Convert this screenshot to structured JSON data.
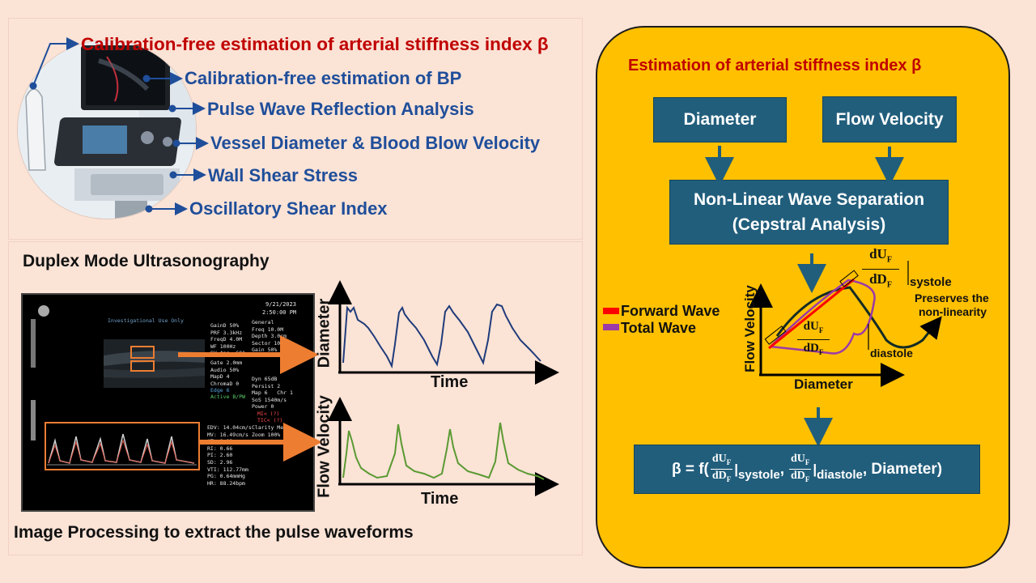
{
  "top_list": {
    "headline": "Calibration-free estimation of arterial stiffness index β",
    "items": [
      "Calibration-free estimation of BP",
      "Pulse Wave Reflection Analysis",
      "Vessel Diameter & Blood Blow Velocity",
      "Wall Shear Stress",
      "Oscillatory Shear Index"
    ]
  },
  "duplex": {
    "title": "Duplex Mode Ultrasonography",
    "caption": "Image Processing to extract the pulse waveforms"
  },
  "ultrasound": {
    "date": "9/21/2023",
    "time": "2:50:00 PM",
    "header_small": "Investigational Use Only",
    "params_left": "GainD 50%\nPRF 3.3kHz\nFreqD 4.0M\nWF 100Hz\nSV Ang -60°",
    "params_right": "General\nFreq 10.0M\nDepth 3.0cm\nSector 100%\nGain 50%",
    "params_left2": "Gate 2.0mm\nAudio 50%\nMapD 4\nChromaD 0",
    "edge": "Edge 6",
    "active": "Active B/PW",
    "params_right2": "Dyn 65dB\nPersist 2\nMap 6   Chr 1\nSoS 1540m/s\nPower 0",
    "warn1": "MI< (?)",
    "warn2": "TIC< (?)",
    "params_right3": "Clarity Med\nZoom 100%",
    "measurements": "EDV: 14.04cm/s\nMV: 16.49cm/s\nAT: 0.08s\nRI: 0.66\nPI: 2.60\nSD: 2.96\nVTI: 112.77mm\nPG: 0.64mmHg\nHR: 88.24bpm"
  },
  "waveforms": {
    "diameter_ylabel": "Diameter",
    "diameter_xlabel": "Time",
    "velocity_ylabel": "Flow Velocity",
    "velocity_xlabel": "Time"
  },
  "estimation": {
    "title": "Estimation of arterial stiffness index β",
    "box_diameter": "Diameter",
    "box_flow": "Flow Velocity",
    "box_nlws_line1": "Non-Linear Wave Separation",
    "box_nlws_line2": "(Cepstral Analysis)",
    "legend_forward": "Forward Wave",
    "legend_total": "Total Wave",
    "plot_ylabel": "Flow Velocity",
    "plot_xlabel": "Diameter",
    "frac_num": "dU",
    "frac_den": "dD",
    "sub_f": "F",
    "systole": "systole",
    "diastole": "diastole",
    "preserves_line1": "Preserves the",
    "preserves_line2": "non-linearity",
    "formula_prefix": "β = f(",
    "formula_comma": ",",
    "formula_diameter": ", Diameter)"
  },
  "colors": {
    "headline_red": "#c00000",
    "item_blue": "#1f4e9a",
    "box_teal": "#215e7c",
    "panel_yellow": "#ffc000",
    "forward_red": "#ff0000",
    "total_purple": "#9b3aa8",
    "orange": "#ed7d31",
    "diameter_wave": "#1f3b7a",
    "velocity_wave": "#5a9a32"
  }
}
